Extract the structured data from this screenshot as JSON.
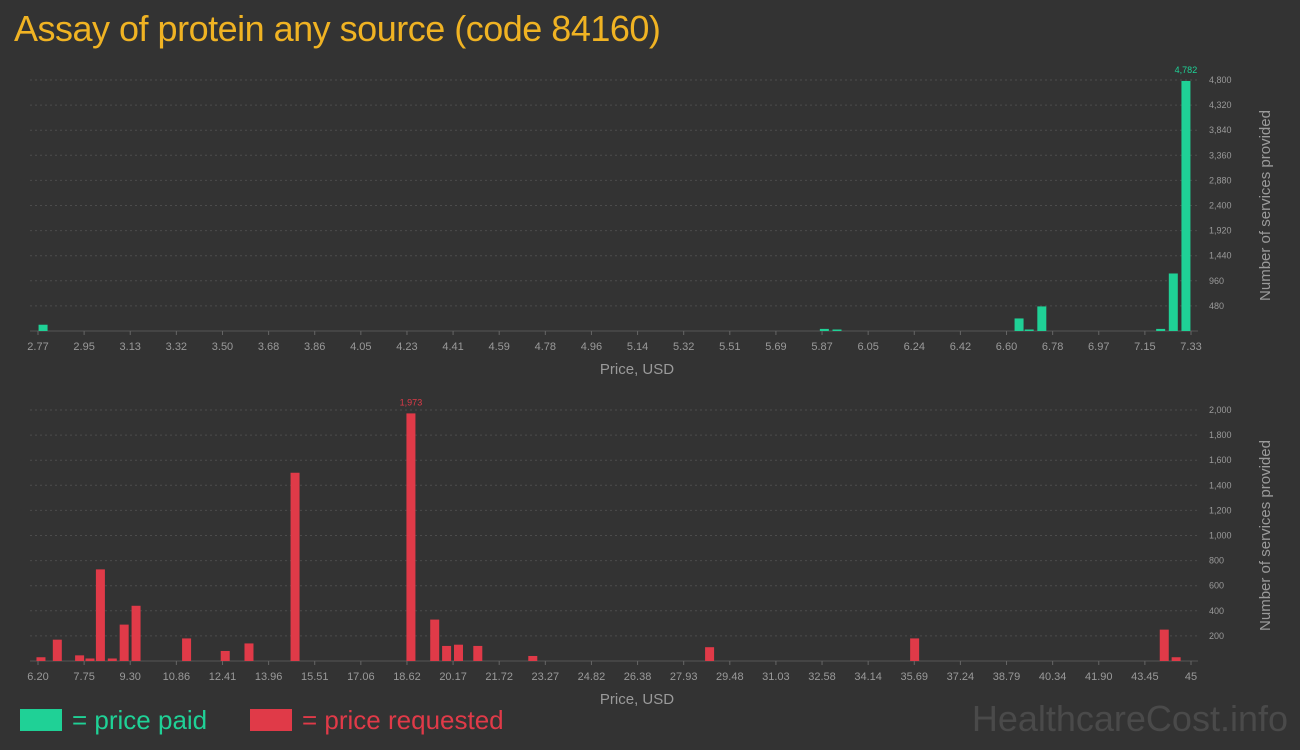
{
  "title": "Assay of protein any source (code 84160)",
  "legend": {
    "paid": "= price paid",
    "requested": "= price requested"
  },
  "watermark": "HealthcareCost.info",
  "colors": {
    "title": "#f0b323",
    "paid": "#1fd196",
    "requested": "#e03a48",
    "background": "#333333"
  },
  "chart_data": [
    {
      "type": "bar",
      "name": "price paid",
      "xlabel": "Price, USD",
      "ylabel": "Number of services provided",
      "xlim": [
        2.77,
        7.33
      ],
      "ylim": [
        0,
        4800
      ],
      "x_ticks": [
        "2.77",
        "2.95",
        "3.13",
        "3.32",
        "3.50",
        "3.68",
        "3.86",
        "4.05",
        "4.23",
        "4.41",
        "4.59",
        "4.78",
        "4.96",
        "5.14",
        "5.32",
        "5.51",
        "5.69",
        "5.87",
        "6.05",
        "6.24",
        "6.42",
        "6.60",
        "6.78",
        "6.97",
        "7.15",
        "7.33"
      ],
      "y_ticks": [
        480,
        960,
        1440,
        1920,
        2400,
        2880,
        3360,
        3840,
        4320,
        4800
      ],
      "y_tick_labels": [
        "480",
        "960",
        "1,440",
        "1,920",
        "2,400",
        "2,880",
        "3,360",
        "3,840",
        "4,320",
        "4,800"
      ],
      "grid": true,
      "peak_label": "4,782",
      "bars": [
        {
          "x": 2.79,
          "value": 120
        },
        {
          "x": 5.88,
          "value": 40
        },
        {
          "x": 5.93,
          "value": 25
        },
        {
          "x": 6.65,
          "value": 240
        },
        {
          "x": 6.69,
          "value": 20
        },
        {
          "x": 6.74,
          "value": 470
        },
        {
          "x": 7.21,
          "value": 40
        },
        {
          "x": 7.26,
          "value": 1100
        },
        {
          "x": 7.31,
          "value": 4782
        }
      ]
    },
    {
      "type": "bar",
      "name": "price requested",
      "xlabel": "Price, USD",
      "ylabel": "Number of services provided",
      "xlim": [
        6.2,
        45
      ],
      "ylim": [
        0,
        2000
      ],
      "x_ticks": [
        "6.20",
        "7.75",
        "9.30",
        "10.86",
        "12.41",
        "13.96",
        "15.51",
        "17.06",
        "18.62",
        "20.17",
        "21.72",
        "23.27",
        "24.82",
        "26.38",
        "27.93",
        "29.48",
        "31.03",
        "32.58",
        "34.14",
        "35.69",
        "37.24",
        "38.79",
        "40.34",
        "41.90",
        "43.45",
        "45"
      ],
      "y_ticks": [
        200,
        400,
        600,
        800,
        1000,
        1200,
        1400,
        1600,
        1800,
        2000
      ],
      "y_tick_labels": [
        "200",
        "400",
        "600",
        "800",
        "1,000",
        "1,200",
        "1,400",
        "1,600",
        "1,800",
        "2,000"
      ],
      "grid": true,
      "peak_label": "1,973",
      "bars": [
        {
          "x": 6.3,
          "value": 30
        },
        {
          "x": 6.85,
          "value": 170
        },
        {
          "x": 7.6,
          "value": 45
        },
        {
          "x": 7.95,
          "value": 20
        },
        {
          "x": 8.3,
          "value": 730
        },
        {
          "x": 8.7,
          "value": 20
        },
        {
          "x": 9.1,
          "value": 290
        },
        {
          "x": 9.5,
          "value": 440
        },
        {
          "x": 11.2,
          "value": 180
        },
        {
          "x": 12.5,
          "value": 80
        },
        {
          "x": 13.3,
          "value": 140
        },
        {
          "x": 14.85,
          "value": 1500
        },
        {
          "x": 18.75,
          "value": 1973
        },
        {
          "x": 19.55,
          "value": 330
        },
        {
          "x": 19.95,
          "value": 120
        },
        {
          "x": 20.35,
          "value": 130
        },
        {
          "x": 21.0,
          "value": 120
        },
        {
          "x": 22.85,
          "value": 40
        },
        {
          "x": 28.8,
          "value": 110
        },
        {
          "x": 35.7,
          "value": 180
        },
        {
          "x": 44.1,
          "value": 250
        },
        {
          "x": 44.5,
          "value": 30
        }
      ]
    }
  ]
}
